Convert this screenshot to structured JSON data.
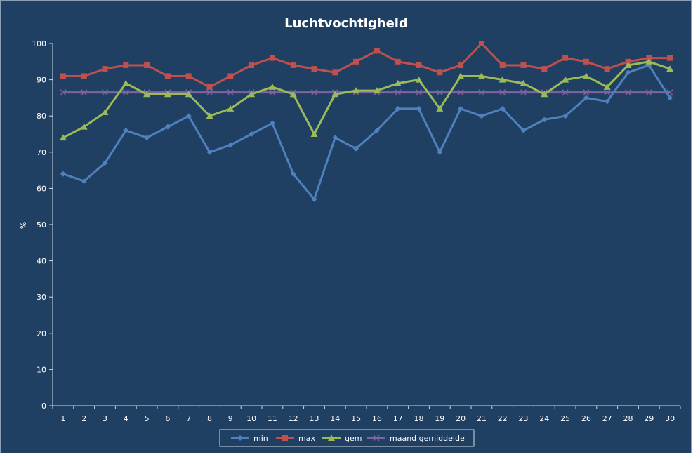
{
  "chart_data": {
    "type": "line",
    "title": "Luchtvochtigheid",
    "xlabel": "",
    "ylabel": "%",
    "ylim": [
      0,
      100
    ],
    "yticks": [
      0,
      10,
      20,
      30,
      40,
      50,
      60,
      70,
      80,
      90,
      100
    ],
    "categories": [
      "1",
      "2",
      "3",
      "4",
      "5",
      "6",
      "7",
      "8",
      "9",
      "10",
      "11",
      "12",
      "13",
      "14",
      "15",
      "16",
      "17",
      "18",
      "19",
      "20",
      "21",
      "22",
      "23",
      "24",
      "25",
      "26",
      "27",
      "28",
      "29",
      "30"
    ],
    "grid": false,
    "legend": "bottom",
    "series": [
      {
        "name": "min",
        "color": "#4f81bd",
        "marker": "diamond",
        "values": [
          64,
          62,
          67,
          76,
          74,
          77,
          80,
          70,
          72,
          75,
          78,
          64,
          57,
          74,
          71,
          76,
          82,
          82,
          70,
          82,
          80,
          82,
          76,
          79,
          80,
          85,
          84,
          92,
          94,
          85
        ]
      },
      {
        "name": "max",
        "color": "#c0504d",
        "marker": "square",
        "values": [
          91,
          91,
          93,
          94,
          94,
          91,
          91,
          88,
          91,
          94,
          96,
          94,
          93,
          92,
          95,
          98,
          95,
          94,
          92,
          94,
          100,
          94,
          94,
          93,
          96,
          95,
          93,
          95,
          96,
          96
        ]
      },
      {
        "name": "gem",
        "color": "#9bbb59",
        "marker": "triangle",
        "values": [
          74,
          77,
          81,
          89,
          86,
          86,
          86,
          80,
          82,
          86,
          88,
          86,
          75,
          86,
          87,
          87,
          89,
          90,
          82,
          91,
          91,
          90,
          89,
          86,
          90,
          91,
          88,
          94,
          95,
          93
        ]
      },
      {
        "name": "maand gemiddelde",
        "color": "#8064a2",
        "marker": "x",
        "values": [
          86.5,
          86.5,
          86.5,
          86.5,
          86.5,
          86.5,
          86.5,
          86.5,
          86.5,
          86.5,
          86.5,
          86.5,
          86.5,
          86.5,
          86.5,
          86.5,
          86.5,
          86.5,
          86.5,
          86.5,
          86.5,
          86.5,
          86.5,
          86.5,
          86.5,
          86.5,
          86.5,
          86.5,
          86.5,
          86.5
        ]
      }
    ]
  }
}
